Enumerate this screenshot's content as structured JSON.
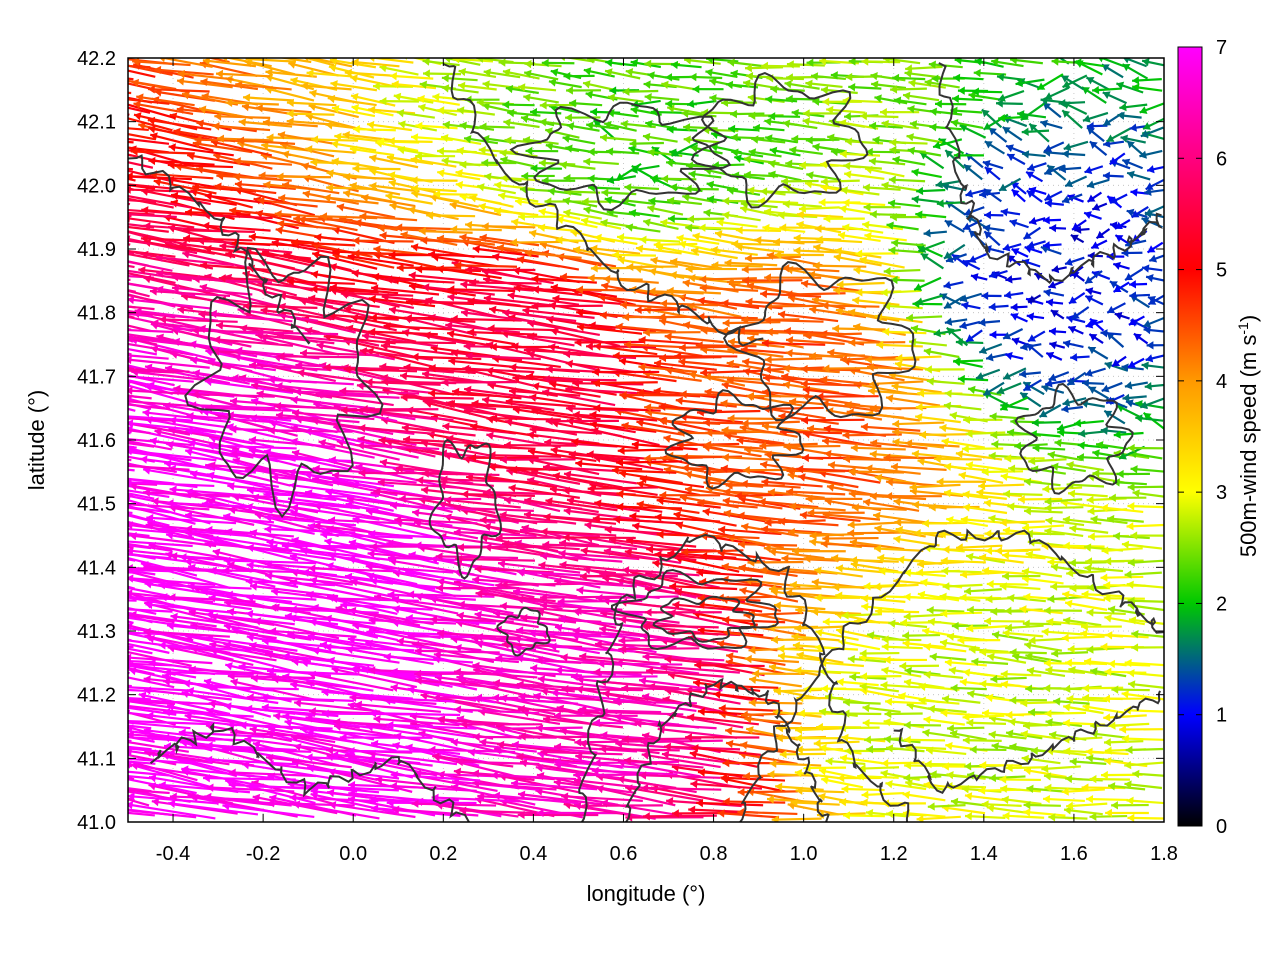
{
  "chart_data": {
    "type": "vector-field",
    "xlabel": "longitude (°)",
    "ylabel": "latitude (°)",
    "colorbar_label": "500m-wind speed (m s",
    "colorbar_label_sup": "-1",
    "colorbar_label_end": ")",
    "xlim": [
      -0.5,
      1.8
    ],
    "ylim": [
      41.0,
      42.2
    ],
    "clim": [
      0,
      7
    ],
    "xticks": [
      "-0.4",
      "-0.2",
      "0.0",
      "0.2",
      "0.4",
      "0.6",
      "0.8",
      "1.0",
      "1.2",
      "1.4",
      "1.6",
      "1.8"
    ],
    "yticks": [
      "41.0",
      "41.1",
      "41.2",
      "41.3",
      "41.4",
      "41.5",
      "41.6",
      "41.7",
      "41.8",
      "41.9",
      "42.0",
      "42.1",
      "42.2"
    ],
    "cticks": [
      "0",
      "1",
      "2",
      "3",
      "4",
      "5",
      "6",
      "7"
    ],
    "grid": "dotted",
    "colormap": [
      "#000000",
      "#0000ff",
      "#00c800",
      "#ffff00",
      "#ff9900",
      "#ff0000",
      "#ff00ff"
    ],
    "contour_color": "#333333",
    "wind_speed_regions": [
      {
        "lon": [
          -0.5,
          0.4
        ],
        "lat": [
          41.0,
          41.6
        ],
        "speed": 7
      },
      {
        "lon": [
          0.3,
          0.9
        ],
        "lat": [
          41.0,
          41.4
        ],
        "speed": 6.5
      },
      {
        "lon": [
          0.2,
          0.7
        ],
        "lat": [
          41.5,
          41.9
        ],
        "speed": 5.5
      },
      {
        "lon": [
          0.7,
          1.3
        ],
        "lat": [
          41.4,
          41.9
        ],
        "speed": 4.5
      },
      {
        "lon": [
          1.0,
          1.8
        ],
        "lat": [
          41.0,
          41.4
        ],
        "speed": 2.8
      },
      {
        "lon": [
          0.3,
          1.1
        ],
        "lat": [
          41.9,
          42.2
        ],
        "speed": 2.2
      },
      {
        "lon": [
          1.3,
          1.8
        ],
        "lat": [
          41.7,
          42.0
        ],
        "speed": 1.0
      }
    ]
  }
}
